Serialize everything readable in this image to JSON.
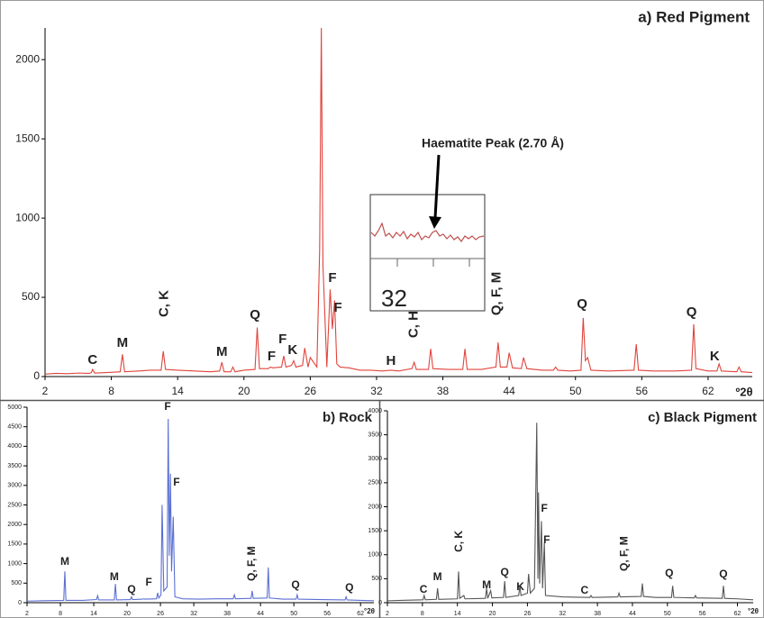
{
  "chart_data": [
    {
      "type": "line",
      "title": "a) Red Pigment",
      "x_label": "º2θ",
      "xlim": [
        2,
        66
      ],
      "xticks": [
        2,
        8,
        14,
        20,
        26,
        32,
        38,
        44,
        50,
        56,
        62
      ],
      "ylim": [
        0,
        2200
      ],
      "yticks": [
        0,
        500,
        1000,
        1500,
        2000
      ],
      "x": [
        2,
        3,
        4,
        5,
        6,
        6.2,
        6.3,
        6.5,
        7.5,
        8.8,
        9.0,
        9.2,
        10.5,
        11.5,
        12.5,
        12.7,
        12.9,
        14,
        15.5,
        17,
        17.8,
        18.0,
        18.2,
        18.8,
        19.0,
        19.2,
        20,
        21.0,
        21.2,
        21.4,
        22.2,
        22.4,
        22.6,
        23.4,
        23.6,
        23.8,
        24.3,
        24.5,
        24.7,
        25.3,
        25.5,
        25.8,
        26.0,
        26.6,
        26.85,
        27.0,
        27.15,
        27.5,
        27.8,
        28.0,
        28.2,
        28.4,
        28.7,
        29.5,
        30.5,
        31.5,
        32.5,
        33.3,
        34,
        35.2,
        35.4,
        35.6,
        36.7,
        36.9,
        37.1,
        38.5,
        39.8,
        40.0,
        40.2,
        41.5,
        42.8,
        43.0,
        43.2,
        43.8,
        44.0,
        44.3,
        45.1,
        45.3,
        45.6,
        47,
        48.0,
        48.2,
        48.4,
        49.5,
        50.5,
        50.7,
        50.9,
        51.1,
        51.4,
        53,
        55.3,
        55.5,
        55.7,
        57,
        59,
        60.5,
        60.7,
        60.9,
        62,
        62.8,
        63.0,
        63.2,
        64.6,
        64.8,
        65,
        66
      ],
      "series": [
        {
          "color": "#e0443c",
          "values": [
            15,
            20,
            18,
            22,
            20,
            25,
            45,
            22,
            25,
            30,
            140,
            30,
            35,
            40,
            40,
            160,
            45,
            40,
            35,
            30,
            35,
            90,
            30,
            30,
            60,
            30,
            40,
            45,
            310,
            50,
            50,
            60,
            55,
            60,
            130,
            60,
            70,
            100,
            60,
            70,
            180,
            60,
            120,
            60,
            800,
            2200,
            700,
            60,
            550,
            300,
            480,
            80,
            60,
            55,
            40,
            40,
            35,
            40,
            35,
            50,
            90,
            45,
            45,
            175,
            50,
            45,
            45,
            175,
            45,
            45,
            60,
            215,
            60,
            60,
            150,
            55,
            50,
            120,
            50,
            40,
            40,
            60,
            40,
            35,
            40,
            370,
            100,
            120,
            40,
            35,
            40,
            205,
            40,
            35,
            35,
            40,
            330,
            50,
            35,
            35,
            80,
            35,
            30,
            60,
            30,
            25
          ]
        }
      ],
      "annotations": [
        {
          "text": "C",
          "x": 6.3,
          "y": 102
        },
        {
          "text": "M",
          "x": 9.0,
          "y": 210
        },
        {
          "text": "C, K",
          "x": 12.8,
          "y": 375,
          "rotate": true
        },
        {
          "text": "M",
          "x": 18.0,
          "y": 153
        },
        {
          "text": "Q",
          "x": 21.0,
          "y": 386
        },
        {
          "text": "F",
          "x": 22.5,
          "y": 125
        },
        {
          "text": "F",
          "x": 23.5,
          "y": 233
        },
        {
          "text": "K",
          "x": 24.4,
          "y": 165
        },
        {
          "text": "F",
          "x": 28.0,
          "y": 619
        },
        {
          "text": "F",
          "x": 28.5,
          "y": 432
        },
        {
          "text": "H",
          "x": 33.3,
          "y": 97
        },
        {
          "text": "C, H",
          "x": 35.4,
          "y": 244,
          "rotate": true
        },
        {
          "text": "Q, F, M",
          "x": 42.9,
          "y": 386,
          "rotate": true
        },
        {
          "text": "Q",
          "x": 50.6,
          "y": 455
        },
        {
          "text": "Q",
          "x": 60.5,
          "y": 403
        },
        {
          "text": "K",
          "x": 62.6,
          "y": 125
        }
      ],
      "inset": {
        "tick_label": "32",
        "callout": "Haematite Peak (2.70 Å)"
      }
    },
    {
      "type": "line",
      "title": "b) Rock",
      "x_label": "°2θ",
      "xlim": [
        2,
        64.4
      ],
      "xticks": [
        2,
        8,
        14,
        20,
        26,
        32,
        38,
        44,
        50,
        56,
        62
      ],
      "ylim": [
        0,
        5000
      ],
      "yticks": [
        0,
        500,
        1000,
        1500,
        2000,
        2500,
        3000,
        3500,
        4000,
        4500,
        5000
      ],
      "x": [
        2,
        5,
        8.6,
        8.8,
        9.0,
        12,
        14.5,
        14.7,
        14.9,
        17.7,
        17.9,
        18.1,
        20.6,
        20.8,
        21.0,
        22.8,
        23.0,
        23.2,
        25.3,
        25.5,
        25.7,
        26.1,
        26.3,
        26.6,
        27.2,
        27.4,
        27.6,
        27.8,
        28.0,
        28.3,
        28.6,
        30,
        33,
        36,
        39.1,
        39.3,
        39.5,
        42.3,
        42.5,
        42.7,
        45.2,
        45.4,
        45.6,
        48,
        50.4,
        50.6,
        50.8,
        55,
        59.2,
        59.4,
        59.6,
        62,
        64.4
      ],
      "series": [
        {
          "color": "#5b6fd3",
          "values": [
            40,
            50,
            60,
            800,
            60,
            60,
            80,
            180,
            70,
            70,
            480,
            70,
            80,
            150,
            80,
            90,
            100,
            90,
            100,
            250,
            120,
            200,
            2500,
            300,
            400,
            4700,
            1200,
            3300,
            800,
            2200,
            150,
            100,
            90,
            100,
            100,
            200,
            100,
            110,
            300,
            110,
            120,
            900,
            120,
            90,
            90,
            200,
            90,
            80,
            70,
            150,
            70,
            60,
            50
          ]
        }
      ],
      "annotations": [
        {
          "text": "M",
          "x": 8.8,
          "y": 1037
        },
        {
          "text": "M",
          "x": 17.7,
          "y": 645
        },
        {
          "text": "Q",
          "x": 20.8,
          "y": 323
        },
        {
          "text": "F",
          "x": 23.9,
          "y": 507
        },
        {
          "text": "F",
          "x": 27.3,
          "y": 5000
        },
        {
          "text": "F",
          "x": 28.9,
          "y": 3065
        },
        {
          "text": "Q, F, M",
          "x": 42.5,
          "y": 553,
          "rotate": true
        },
        {
          "text": "Q",
          "x": 50.3,
          "y": 438
        },
        {
          "text": "Q",
          "x": 60.0,
          "y": 369
        }
      ]
    },
    {
      "type": "line",
      "title": "c) Black Pigment",
      "x_label": "°2θ",
      "xlim": [
        2,
        64.7
      ],
      "xticks": [
        2,
        8,
        14,
        20,
        26,
        32,
        38,
        44,
        50,
        56,
        62
      ],
      "ylim": [
        0,
        4000
      ],
      "yticks": [
        0,
        500,
        1000,
        1500,
        2000,
        2500,
        3000,
        3500,
        4000
      ],
      "x": [
        2,
        5,
        8.1,
        8.3,
        8.5,
        10.4,
        10.6,
        10.8,
        14.0,
        14.2,
        14.4,
        15.1,
        15.3,
        18.8,
        19.0,
        19.2,
        19.7,
        19.9,
        21.9,
        22.1,
        22.3,
        24.5,
        24.7,
        24.9,
        26.0,
        26.2,
        26.5,
        27.2,
        27.3,
        27.6,
        27.8,
        27.9,
        28.1,
        28.4,
        28.6,
        28.9,
        29.1,
        32,
        36.7,
        36.9,
        37.1,
        41.5,
        41.7,
        41.9,
        45.5,
        45.7,
        45.9,
        48,
        50.7,
        50.9,
        51.1,
        54.6,
        54.8,
        55.0,
        59.4,
        59.6,
        59.8,
        62,
        64.7
      ],
      "series": [
        {
          "color": "#555555",
          "values": [
            40,
            50,
            60,
            150,
            60,
            70,
            300,
            70,
            80,
            650,
            90,
            150,
            80,
            90,
            300,
            90,
            250,
            100,
            110,
            450,
            110,
            150,
            350,
            150,
            200,
            600,
            200,
            300,
            1100,
            3750,
            500,
            2300,
            400,
            1700,
            300,
            1250,
            150,
            120,
            110,
            150,
            110,
            120,
            200,
            120,
            130,
            400,
            130,
            110,
            110,
            350,
            110,
            100,
            150,
            100,
            90,
            350,
            90,
            80,
            60
          ]
        }
      ],
      "annotations": [
        {
          "text": "C",
          "x": 8.2,
          "y": 263
        },
        {
          "text": "M",
          "x": 10.6,
          "y": 526
        },
        {
          "text": "C, K",
          "x": 14.3,
          "y": 1053,
          "rotate": true
        },
        {
          "text": "M",
          "x": 19.0,
          "y": 357
        },
        {
          "text": "Q",
          "x": 22.1,
          "y": 620
        },
        {
          "text": "K",
          "x": 24.8,
          "y": 320
        },
        {
          "text": "F",
          "x": 28.9,
          "y": 1955
        },
        {
          "text": "F",
          "x": 29.3,
          "y": 1297
        },
        {
          "text": "C",
          "x": 35.8,
          "y": 244
        },
        {
          "text": "Q, F, M",
          "x": 42.7,
          "y": 658,
          "rotate": true
        },
        {
          "text": "Q",
          "x": 50.3,
          "y": 602
        },
        {
          "text": "Q",
          "x": 59.6,
          "y": 583
        }
      ]
    }
  ]
}
